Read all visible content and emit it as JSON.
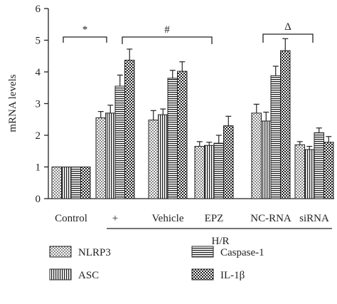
{
  "chart_data": {
    "type": "bar",
    "ylabel": "mRNA levels",
    "ylim": [
      0,
      6
    ],
    "yticks": [
      0,
      1,
      2,
      3,
      4,
      5,
      6
    ],
    "categories": [
      "Control",
      "+",
      "Vehicle",
      "EPZ",
      "NC-RNA",
      "siRNA"
    ],
    "group_label": "H/R",
    "series": [
      {
        "name": "NLRP3",
        "pattern": "dots",
        "values": [
          1.0,
          2.55,
          2.48,
          1.65,
          2.7,
          1.7
        ],
        "errors": [
          0,
          0.2,
          0.3,
          0.15,
          0.28,
          0.1
        ]
      },
      {
        "name": "ASC",
        "pattern": "vlines",
        "values": [
          1.0,
          2.7,
          2.65,
          1.68,
          2.45,
          1.55
        ],
        "errors": [
          0,
          0.25,
          0.18,
          0.1,
          0.28,
          0.1
        ]
      },
      {
        "name": "Caspase-1",
        "pattern": "hlines",
        "values": [
          1.0,
          3.55,
          3.8,
          1.75,
          3.88,
          2.08
        ],
        "errors": [
          0,
          0.35,
          0.25,
          0.25,
          0.3,
          0.15
        ]
      },
      {
        "name": "IL-1β",
        "pattern": "checker",
        "values": [
          1.0,
          4.37,
          4.02,
          2.3,
          4.67,
          1.78
        ],
        "errors": [
          0,
          0.35,
          0.3,
          0.3,
          0.38,
          0.18
        ]
      }
    ],
    "significance": [
      {
        "label": "*"
      },
      {
        "label": "#"
      },
      {
        "label": "Δ"
      }
    ]
  }
}
